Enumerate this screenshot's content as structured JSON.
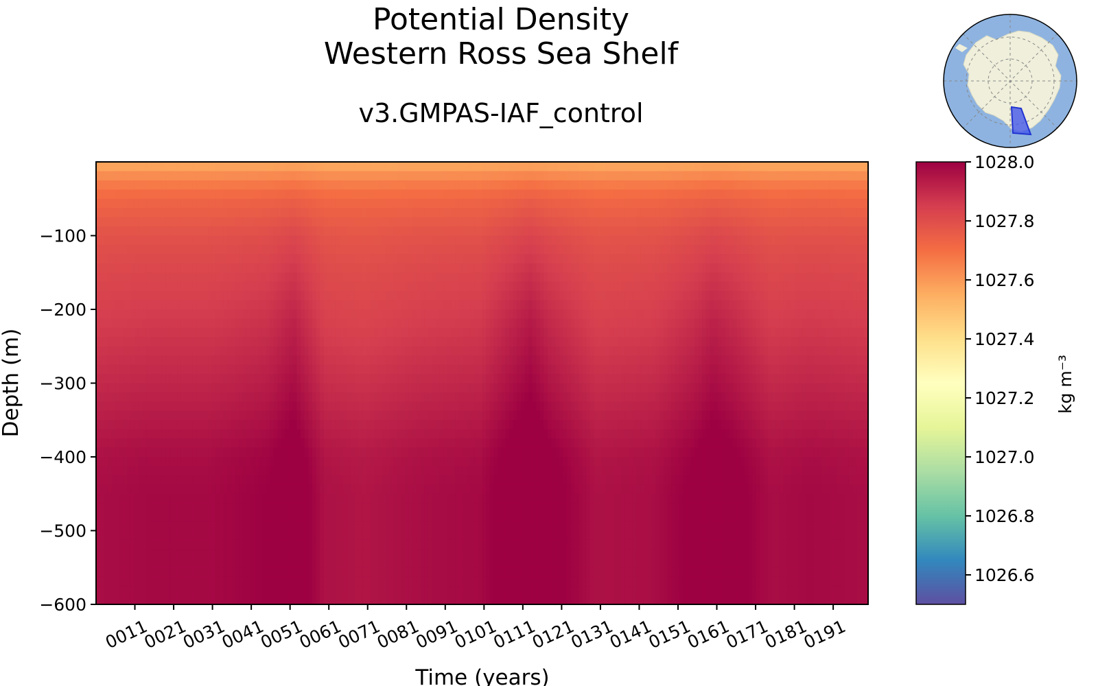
{
  "chart_data": {
    "type": "heatmap",
    "title": [
      "Potential Density",
      "Western Ross Sea Shelf"
    ],
    "subtitle": "v3.GMPAS-IAF_control",
    "xlabel": "Time (years)",
    "ylabel": "Depth (m)",
    "x_range": [
      1,
      200
    ],
    "x_ticks": [
      11,
      21,
      31,
      41,
      51,
      61,
      71,
      81,
      91,
      101,
      111,
      121,
      131,
      141,
      151,
      161,
      171,
      181,
      191
    ],
    "x_tick_labels": [
      "0011",
      "0021",
      "0031",
      "0041",
      "0051",
      "0061",
      "0071",
      "0081",
      "0091",
      "0101",
      "0111",
      "0121",
      "0131",
      "0141",
      "0151",
      "0161",
      "0171",
      "0181",
      "0191"
    ],
    "ylim": [
      -600,
      0
    ],
    "y_ticks": [
      -100,
      -200,
      -300,
      -400,
      -500,
      -600
    ],
    "y_tick_labels": [
      "−100",
      "−200",
      "−300",
      "−400",
      "−500",
      "−600"
    ],
    "colorbar": {
      "colormap": "Spectral_r",
      "range": [
        1026.5,
        1028.0
      ],
      "ticks": [
        1028.0,
        1027.8,
        1027.6,
        1027.4,
        1027.2,
        1027.0,
        1026.8,
        1026.6
      ],
      "tick_labels": [
        "1028.0",
        "1027.8",
        "1027.6",
        "1027.4",
        "1027.2",
        "1027.0",
        "1026.8",
        "1026.6"
      ],
      "label": "kg m⁻³"
    },
    "depths": [
      0,
      -25,
      -50,
      -100,
      -150,
      -200,
      -250,
      -300,
      -350,
      -400,
      -450,
      -500,
      -550,
      -600
    ],
    "base_profile": [
      1027.55,
      1027.66,
      1027.73,
      1027.8,
      1027.84,
      1027.87,
      1027.9,
      1027.93,
      1027.96,
      1027.99,
      1028.0,
      1028.0,
      1028.0,
      1028.0
    ],
    "times": [
      1,
      15,
      30,
      45,
      52,
      60,
      70,
      85,
      100,
      108,
      113,
      118,
      130,
      145,
      155,
      160,
      165,
      175,
      185,
      200
    ],
    "anomaly": [
      -0.03,
      -0.02,
      -0.02,
      0.0,
      0.04,
      -0.04,
      -0.05,
      -0.03,
      -0.02,
      0.03,
      0.06,
      0.02,
      -0.04,
      -0.03,
      0.01,
      0.04,
      0.02,
      -0.03,
      -0.02,
      -0.03
    ],
    "inset_map": {
      "region": "Western Ross Sea Shelf",
      "projection": "south-polar stereographic",
      "ocean_color": "#8eb3e0",
      "land_color": "#efefdb",
      "region_color": "#4457e8"
    }
  }
}
